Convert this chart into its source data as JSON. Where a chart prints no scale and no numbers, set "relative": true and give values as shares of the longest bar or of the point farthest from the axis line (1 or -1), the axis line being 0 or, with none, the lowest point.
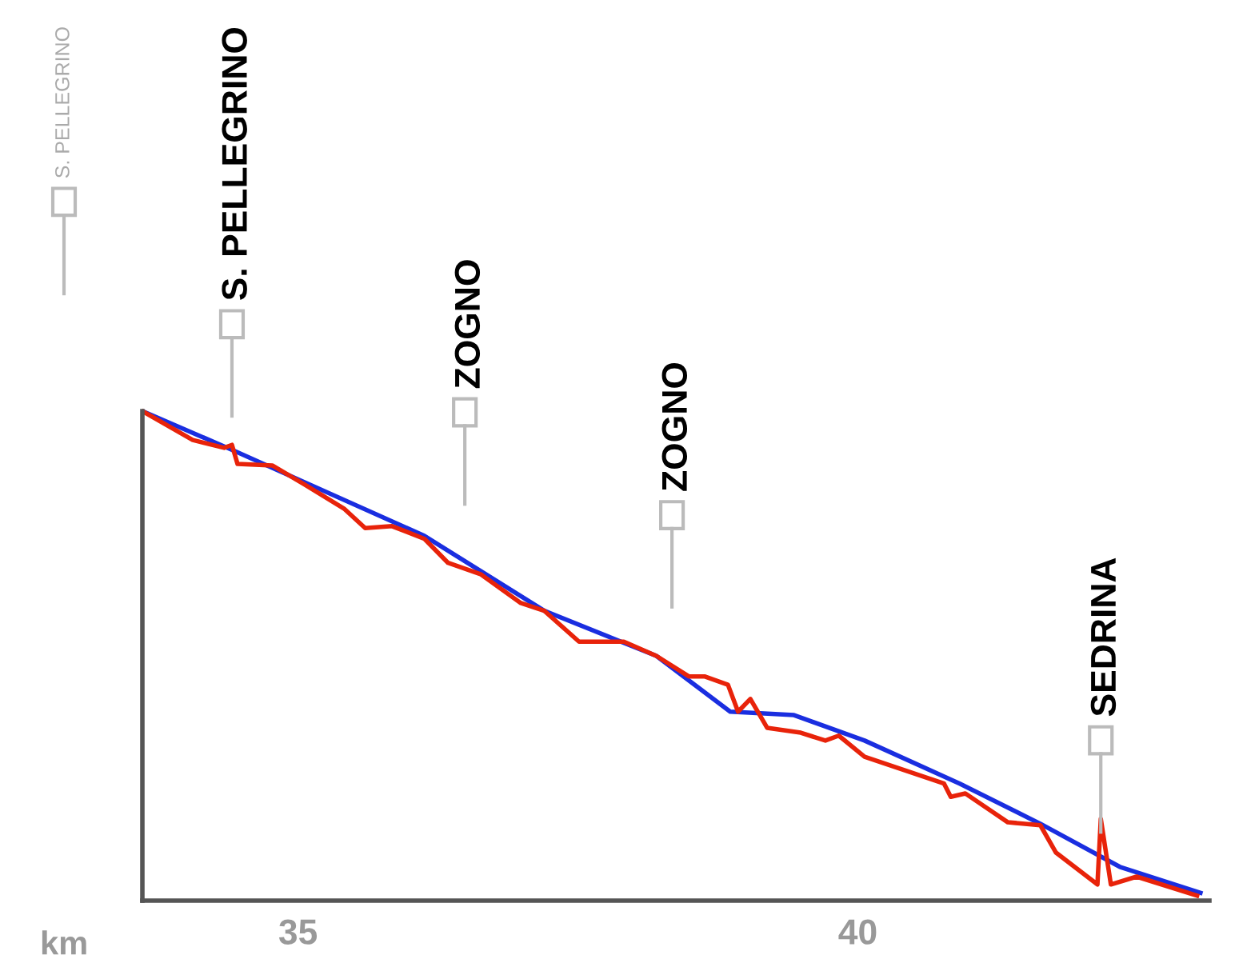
{
  "chart_data": {
    "type": "line",
    "relative": true,
    "xlabel": "km",
    "xlim": [
      33.61,
      43.14
    ],
    "xticks": [
      35,
      40
    ],
    "grid": false,
    "marker": "none",
    "line_style": "solid",
    "series": [
      {
        "color": "#1a2ee0",
        "x": [
          33.61,
          34.44,
          36.13,
          37.2,
          38.2,
          38.86,
          39.43,
          40.06,
          40.91,
          41.63,
          42.34,
          43.06
        ],
        "values": [
          1.0,
          0.918,
          0.745,
          0.592,
          0.5,
          0.386,
          0.379,
          0.327,
          0.239,
          0.157,
          0.069,
          0.016
        ]
      },
      {
        "color": "#e8230a",
        "x": [
          33.61,
          34.06,
          34.34,
          34.41,
          34.46,
          34.77,
          35.06,
          35.41,
          35.6,
          35.84,
          36.13,
          36.34,
          36.63,
          36.99,
          37.2,
          37.51,
          37.91,
          38.2,
          38.49,
          38.63,
          38.84,
          38.93,
          39.04,
          39.19,
          39.49,
          39.71,
          39.83,
          40.06,
          40.77,
          40.83,
          40.96,
          41.34,
          41.63,
          41.77,
          42.14,
          42.17,
          42.26,
          42.49,
          43.03
        ],
        "values": [
          1.0,
          0.941,
          0.925,
          0.931,
          0.892,
          0.889,
          0.85,
          0.801,
          0.761,
          0.765,
          0.739,
          0.69,
          0.667,
          0.608,
          0.592,
          0.529,
          0.529,
          0.5,
          0.458,
          0.458,
          0.441,
          0.386,
          0.412,
          0.353,
          0.343,
          0.327,
          0.337,
          0.294,
          0.239,
          0.212,
          0.219,
          0.16,
          0.154,
          0.098,
          0.033,
          0.167,
          0.033,
          0.049,
          0.01
        ]
      }
    ],
    "annotations": [
      "S. PELLEGRINO",
      "S. PELLEGRINO",
      "ZOGNO",
      "ZOGNO",
      "SEDRINA"
    ]
  }
}
